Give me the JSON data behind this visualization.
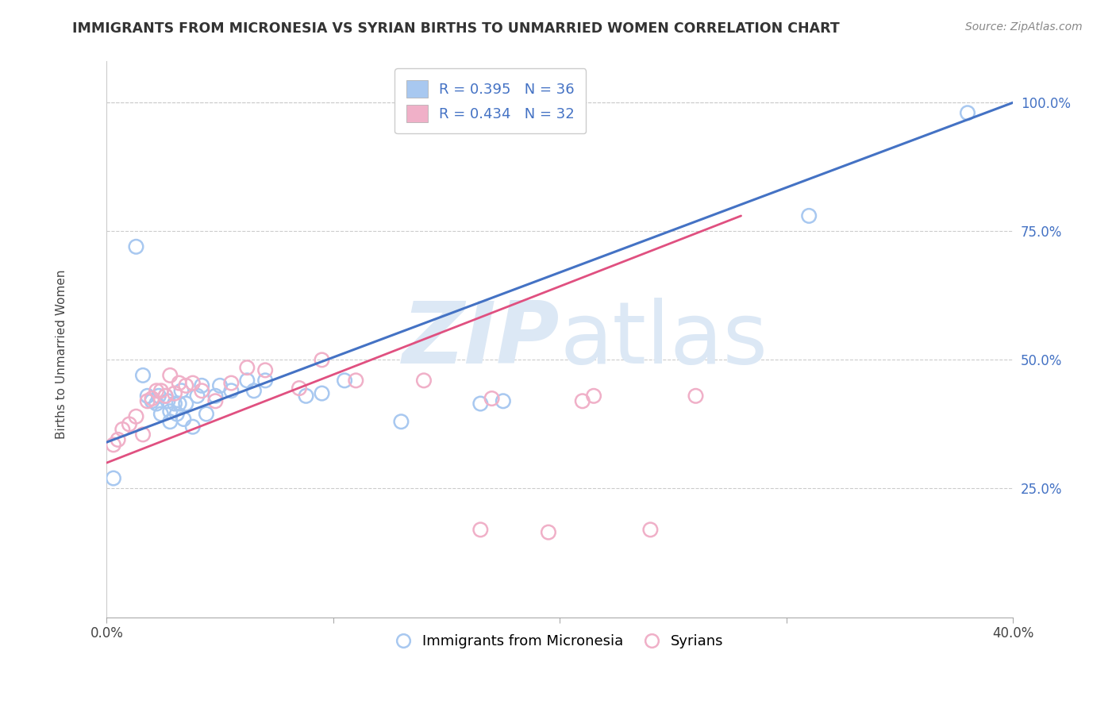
{
  "title": "IMMIGRANTS FROM MICRONESIA VS SYRIAN BIRTHS TO UNMARRIED WOMEN CORRELATION CHART",
  "source_text": "Source: ZipAtlas.com",
  "ylabel": "Births to Unmarried Women",
  "xlim": [
    0.0,
    0.4
  ],
  "ylim": [
    0.0,
    1.08
  ],
  "x_ticks": [
    0.0,
    0.1,
    0.2,
    0.3,
    0.4
  ],
  "x_tick_labels": [
    "0.0%",
    "",
    "",
    "",
    "40.0%"
  ],
  "y_ticks": [
    0.25,
    0.5,
    0.75,
    1.0
  ],
  "y_tick_labels": [
    "25.0%",
    "50.0%",
    "75.0%",
    "100.0%"
  ],
  "legend_r1": "R = 0.395",
  "legend_n1": "N = 36",
  "legend_r2": "R = 0.434",
  "legend_n2": "N = 32",
  "color_blue": "#a8c8f0",
  "color_pink": "#f0b0c8",
  "color_blue_line": "#4472c4",
  "color_pink_line": "#e05080",
  "watermark_zip": "ZIP",
  "watermark_atlas": "atlas",
  "watermark_color": "#dce8f5",
  "blue_x": [
    0.003,
    0.013,
    0.016,
    0.018,
    0.02,
    0.022,
    0.023,
    0.024,
    0.026,
    0.027,
    0.028,
    0.028,
    0.03,
    0.031,
    0.032,
    0.033,
    0.034,
    0.035,
    0.038,
    0.04,
    0.042,
    0.044,
    0.048,
    0.05,
    0.055,
    0.062,
    0.065,
    0.07,
    0.088,
    0.095,
    0.105,
    0.13,
    0.165,
    0.175,
    0.31,
    0.38
  ],
  "blue_y": [
    0.27,
    0.72,
    0.47,
    0.43,
    0.42,
    0.415,
    0.43,
    0.395,
    0.43,
    0.42,
    0.38,
    0.4,
    0.415,
    0.395,
    0.415,
    0.44,
    0.385,
    0.415,
    0.37,
    0.43,
    0.45,
    0.395,
    0.43,
    0.45,
    0.44,
    0.46,
    0.44,
    0.46,
    0.43,
    0.435,
    0.46,
    0.38,
    0.415,
    0.42,
    0.78,
    0.98
  ],
  "pink_x": [
    0.003,
    0.005,
    0.007,
    0.01,
    0.013,
    0.016,
    0.018,
    0.02,
    0.022,
    0.024,
    0.026,
    0.028,
    0.03,
    0.032,
    0.035,
    0.038,
    0.042,
    0.048,
    0.055,
    0.062,
    0.07,
    0.085,
    0.095,
    0.11,
    0.14,
    0.165,
    0.17,
    0.195,
    0.21,
    0.215,
    0.24,
    0.26
  ],
  "pink_y": [
    0.335,
    0.345,
    0.365,
    0.375,
    0.39,
    0.355,
    0.42,
    0.425,
    0.44,
    0.44,
    0.43,
    0.47,
    0.435,
    0.455,
    0.45,
    0.455,
    0.44,
    0.42,
    0.455,
    0.485,
    0.48,
    0.445,
    0.5,
    0.46,
    0.46,
    0.17,
    0.425,
    0.165,
    0.42,
    0.43,
    0.17,
    0.43
  ],
  "blue_line_x": [
    0.0,
    0.4
  ],
  "blue_line_y": [
    0.34,
    1.0
  ],
  "pink_line_x": [
    0.0,
    0.28
  ],
  "pink_line_y": [
    0.3,
    0.78
  ]
}
